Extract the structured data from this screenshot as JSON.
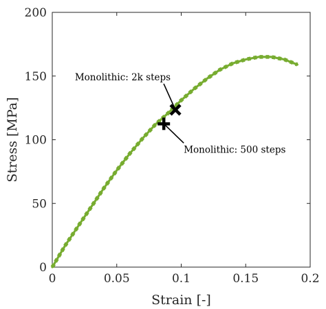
{
  "chart_data": {
    "type": "line",
    "xlabel": "Strain [-]",
    "ylabel": "Stress [MPa]",
    "xlim": [
      0,
      0.2
    ],
    "ylim": [
      0,
      200
    ],
    "xticks": [
      0,
      0.05,
      0.1,
      0.15,
      0.2
    ],
    "xtick_labels": [
      "0",
      "0.05",
      "0.1",
      "0.15",
      "0.2"
    ],
    "yticks": [
      0,
      50,
      100,
      150,
      200
    ],
    "ytick_labels": [
      "0",
      "50",
      "100",
      "150",
      "200"
    ],
    "grid": false,
    "series": [
      {
        "color": "#77ac30",
        "style": "dashed-solid-overlay",
        "x": [
          0,
          0.01,
          0.02,
          0.03,
          0.04,
          0.05,
          0.06,
          0.07,
          0.08,
          0.09,
          0.1,
          0.11,
          0.12,
          0.13,
          0.14,
          0.15,
          0.16,
          0.17,
          0.18,
          0.19
        ],
        "y": [
          0,
          17,
          32,
          47,
          62,
          76,
          89,
          101,
          112,
          121,
          131,
          140,
          148,
          155,
          160,
          163,
          165,
          165,
          163,
          159
        ]
      }
    ],
    "markers": [
      {
        "type": "x",
        "x": 0.0955,
        "y": 123.5,
        "label": "Monolithic: 2k steps",
        "label_position": "upper-left"
      },
      {
        "type": "plus",
        "x": 0.0865,
        "y": 112.5,
        "label": "Monolithic: 500 steps",
        "label_position": "lower-right"
      }
    ],
    "colors": {
      "line": "#77ac30",
      "axes": "#262626",
      "marker": "#000000"
    }
  }
}
